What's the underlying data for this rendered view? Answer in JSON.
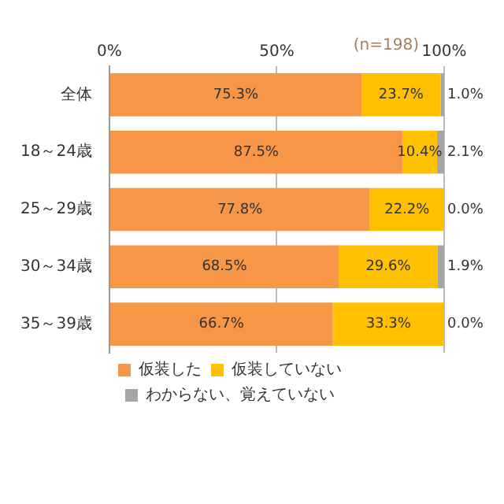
{
  "chart_data": {
    "type": "bar",
    "orientation": "horizontal",
    "stacked": true,
    "categories": [
      "全体",
      "18～24歳",
      "25～29歳",
      "30～34歳",
      "35～39歳"
    ],
    "series": [
      {
        "name": "仮装した",
        "color": "#f79646",
        "values": [
          75.3,
          87.5,
          77.8,
          68.5,
          66.7
        ],
        "value_labels": [
          "75.3%",
          "87.5%",
          "77.8%",
          "68.5%",
          "66.7%"
        ]
      },
      {
        "name": "仮装していない",
        "color": "#ffc000",
        "values": [
          23.7,
          10.4,
          22.2,
          29.6,
          33.3
        ],
        "value_labels": [
          "23.7%",
          "10.4%",
          "22.2%",
          "29.6%",
          "33.3%"
        ]
      },
      {
        "name": "わからない、覚えていない",
        "color": "#a5a5a5",
        "values": [
          1.0,
          2.1,
          0.0,
          1.9,
          0.0
        ],
        "value_labels": [
          "1.0%",
          "2.1%",
          "0.0%",
          "1.9%",
          "0.0%"
        ]
      }
    ],
    "xlim": [
      0,
      100
    ],
    "xticks": [
      {
        "value": 0,
        "label": "0%"
      },
      {
        "value": 50,
        "label": "50%"
      },
      {
        "value": 100,
        "label": "100%"
      }
    ],
    "grid": "x",
    "legend": "bottom",
    "annotations": [
      "(n=198)"
    ]
  }
}
